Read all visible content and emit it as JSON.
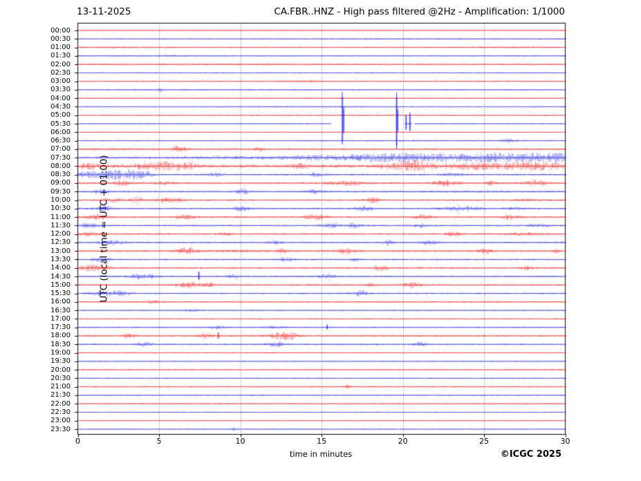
{
  "header": {
    "date": "13-11-2025",
    "title": "CA.FBR..HNZ - High pass filtered @2Hz - Amplification: 1/1000"
  },
  "axes": {
    "ylabel": "UTC (local time = UTC + 01:00)",
    "xlabel": "time in minutes"
  },
  "footer": {
    "copyright": "©ICGC 2025"
  },
  "colors": {
    "trace_red": "#e81414",
    "trace_blue": "#2020dd",
    "grid": "#666666",
    "frame": "#000000",
    "text": "#000000"
  },
  "chart_data": {
    "type": "line",
    "description": "Helicorder day-plot: 48 half-hour traces, red on the hour, blue on the half hour. Noise level in px half-amplitude; bursts = [minute, sigma_min, extra_amp]; spikes = [minute, up_px, down_px]; segments = drawn baseline ranges in minutes (null = full 0-30).",
    "x_range_minutes": [
      0,
      30
    ],
    "x_ticks_minutes": [
      0,
      5,
      10,
      15,
      20,
      25,
      30
    ],
    "rows": [
      {
        "time": "00:00",
        "color": "red",
        "noise": 0.5,
        "bursts": [
          [
            14,
            12,
            0.15
          ]
        ],
        "spikes": [],
        "segments": null
      },
      {
        "time": "00:30",
        "color": "blue",
        "noise": 0.65,
        "bursts": [
          [
            20,
            8,
            0.2
          ]
        ],
        "spikes": [],
        "segments": null
      },
      {
        "time": "01:00",
        "color": "red",
        "noise": 0.75,
        "bursts": [
          [
            3,
            2,
            0.3
          ],
          [
            26,
            3,
            0.3
          ]
        ],
        "spikes": [],
        "segments": null
      },
      {
        "time": "01:30",
        "color": "blue",
        "noise": 0.75,
        "bursts": [
          [
            5,
            3,
            0.2
          ]
        ],
        "spikes": [],
        "segments": null
      },
      {
        "time": "02:00",
        "color": "red",
        "noise": 0.8,
        "bursts": [
          [
            8,
            5,
            0.2
          ]
        ],
        "spikes": [],
        "segments": null
      },
      {
        "time": "02:30",
        "color": "blue",
        "noise": 0.7,
        "bursts": [],
        "spikes": [],
        "segments": null
      },
      {
        "time": "03:00",
        "color": "red",
        "noise": 0.7,
        "bursts": [
          [
            14,
            1,
            0.5
          ]
        ],
        "spikes": [],
        "segments": null
      },
      {
        "time": "03:30",
        "color": "blue",
        "noise": 0.75,
        "bursts": [
          [
            5.1,
            0.1,
            2.2
          ]
        ],
        "spikes": [],
        "segments": null
      },
      {
        "time": "04:00",
        "color": "red",
        "noise": 0.7,
        "bursts": [],
        "spikes": [],
        "segments": null
      },
      {
        "time": "04:30",
        "color": "blue",
        "noise": 0.7,
        "bursts": [
          [
            12,
            4,
            0.2
          ]
        ],
        "spikes": [],
        "segments": null
      },
      {
        "time": "05:00",
        "color": "red",
        "noise": 0.7,
        "bursts": [],
        "spikes": [],
        "segments": null
      },
      {
        "time": "05:30",
        "color": "blue",
        "noise": 0.6,
        "bursts": [],
        "spikes": [
          [
            16.28,
            46,
            30
          ],
          [
            16.36,
            24,
            14
          ],
          [
            19.62,
            45,
            37
          ],
          [
            19.68,
            22,
            12
          ],
          [
            20.2,
            13,
            9
          ],
          [
            20.44,
            16,
            11
          ]
        ],
        "segments": [
          [
            0,
            15.55
          ],
          [
            20.1,
            20.55
          ],
          [
            20.7,
            30
          ]
        ]
      },
      {
        "time": "06:00",
        "color": "red",
        "noise": 0.45,
        "bursts": [],
        "spikes": [],
        "segments": null
      },
      {
        "time": "06:30",
        "color": "blue",
        "noise": 0.7,
        "bursts": [
          [
            26.5,
            0.25,
            3.2
          ],
          [
            20,
            6,
            0.2
          ]
        ],
        "spikes": [],
        "segments": null
      },
      {
        "time": "07:00",
        "color": "red",
        "noise": 1.0,
        "bursts": [
          [
            6.2,
            0.3,
            3.0
          ],
          [
            11.1,
            0.2,
            1.8
          ],
          [
            2,
            1,
            0.5
          ]
        ],
        "spikes": [],
        "segments": null
      },
      {
        "time": "07:30",
        "color": "blue",
        "noise": 1.15,
        "bursts": [
          [
            9,
            2,
            0.5
          ],
          [
            14.5,
            1.2,
            1.8
          ],
          [
            17.8,
            1,
            2.2
          ],
          [
            19.8,
            1.5,
            2.2
          ],
          [
            22,
            1.2,
            2.0
          ],
          [
            24.5,
            1.2,
            2.2
          ],
          [
            26.5,
            1.2,
            2.6
          ],
          [
            28.5,
            1,
            2.8
          ],
          [
            29.6,
            0.5,
            2.5
          ],
          [
            21,
            8,
            0.8
          ]
        ],
        "spikes": [],
        "segments": null
      },
      {
        "time": "08:00",
        "color": "red",
        "noise": 1.25,
        "bursts": [
          [
            0.6,
            0.7,
            2.2
          ],
          [
            4.8,
            1.2,
            2.6
          ],
          [
            6.2,
            0.8,
            2.6
          ],
          [
            13.6,
            0.4,
            1.8
          ],
          [
            19.9,
            1,
            2.6
          ],
          [
            21,
            0.6,
            3.0
          ],
          [
            23.8,
            1,
            2.6
          ],
          [
            26.6,
            1.4,
            2.6
          ],
          [
            28.7,
            1,
            2.8
          ],
          [
            15,
            14,
            0.5
          ]
        ],
        "spikes": [],
        "segments": null
      },
      {
        "time": "08:30",
        "color": "blue",
        "noise": 1.0,
        "bursts": [
          [
            0.8,
            0.8,
            2.8
          ],
          [
            2.3,
            0.9,
            3.8
          ],
          [
            3.7,
            0.6,
            3.4
          ],
          [
            8.4,
            0.25,
            2.6
          ],
          [
            14.7,
            0.3,
            2.2
          ],
          [
            23.2,
            0.4,
            1.8
          ]
        ],
        "spikes": [],
        "segments": null
      },
      {
        "time": "09:00",
        "color": "red",
        "noise": 1.05,
        "bursts": [
          [
            2.7,
            0.35,
            2.8
          ],
          [
            5.4,
            0.4,
            1.8
          ],
          [
            16.5,
            0.7,
            2.2
          ],
          [
            22.6,
            0.5,
            2.6
          ],
          [
            25.4,
            0.25,
            2.2
          ],
          [
            28.2,
            0.5,
            3.0
          ]
        ],
        "spikes": [],
        "segments": null
      },
      {
        "time": "09:30",
        "color": "blue",
        "noise": 0.95,
        "bursts": [
          [
            1.5,
            0.4,
            2.2
          ],
          [
            10.1,
            0.3,
            2.8
          ],
          [
            14.6,
            0.4,
            1.8
          ],
          [
            24,
            2,
            0.4
          ]
        ],
        "spikes": [],
        "segments": null
      },
      {
        "time": "10:00",
        "color": "red",
        "noise": 0.95,
        "bursts": [
          [
            2.1,
            0.5,
            2.2
          ],
          [
            3.6,
            0.3,
            2.6
          ],
          [
            5.6,
            0.6,
            2.6
          ],
          [
            18.1,
            0.3,
            2.6
          ],
          [
            28,
            1,
            0.8
          ]
        ],
        "spikes": [],
        "segments": null
      },
      {
        "time": "10:30",
        "color": "blue",
        "noise": 0.95,
        "bursts": [
          [
            1.6,
            0.4,
            2.6
          ],
          [
            10,
            0.4,
            2.2
          ],
          [
            17.6,
            0.4,
            2.2
          ],
          [
            23.6,
            0.8,
            2.6
          ],
          [
            27,
            0.4,
            1.8
          ]
        ],
        "spikes": [],
        "segments": null
      },
      {
        "time": "11:00",
        "color": "red",
        "noise": 0.95,
        "bursts": [
          [
            1.1,
            0.5,
            2.6
          ],
          [
            6.6,
            0.4,
            2.2
          ],
          [
            14.6,
            0.5,
            2.6
          ],
          [
            21.2,
            0.4,
            2.2
          ],
          [
            26.6,
            0.4,
            2.6
          ]
        ],
        "spikes": [],
        "segments": null
      },
      {
        "time": "11:30",
        "color": "blue",
        "noise": 0.95,
        "bursts": [
          [
            0.7,
            0.4,
            2.6
          ],
          [
            15.4,
            0.4,
            2.2
          ],
          [
            16.9,
            0.4,
            2.2
          ],
          [
            21.1,
            0.3,
            1.8
          ],
          [
            28.4,
            0.5,
            1.5
          ]
        ],
        "spikes": [],
        "segments": null
      },
      {
        "time": "12:00",
        "color": "red",
        "noise": 0.95,
        "bursts": [
          [
            0.7,
            0.5,
            2.2
          ],
          [
            9.1,
            0.3,
            1.8
          ],
          [
            23.1,
            0.3,
            2.6
          ],
          [
            27.5,
            0.8,
            1.2
          ]
        ],
        "spikes": [],
        "segments": null
      },
      {
        "time": "12:30",
        "color": "blue",
        "noise": 0.95,
        "bursts": [
          [
            2.1,
            0.5,
            2.6
          ],
          [
            12.1,
            0.25,
            2.2
          ],
          [
            19.1,
            0.15,
            3.4
          ],
          [
            21.6,
            0.3,
            2.2
          ]
        ],
        "spikes": [],
        "segments": null
      },
      {
        "time": "13:00",
        "color": "red",
        "noise": 1.05,
        "bursts": [
          [
            6.7,
            0.4,
            3.0
          ],
          [
            12.6,
            0.25,
            2.2
          ],
          [
            16.5,
            0.4,
            2.6
          ],
          [
            25.1,
            0.3,
            2.6
          ],
          [
            29.4,
            0.15,
            2.6
          ],
          [
            10,
            1,
            0.8
          ]
        ],
        "spikes": [],
        "segments": null
      },
      {
        "time": "13:30",
        "color": "blue",
        "noise": 0.95,
        "bursts": [
          [
            1.4,
            0.4,
            2.6
          ],
          [
            12.8,
            0.3,
            2.2
          ],
          [
            17.1,
            0.25,
            1.8
          ]
        ],
        "spikes": [],
        "segments": null
      },
      {
        "time": "14:00",
        "color": "red",
        "noise": 0.95,
        "bursts": [
          [
            0.5,
            0.4,
            2.6
          ],
          [
            1.3,
            0.4,
            3.0
          ],
          [
            18.6,
            0.3,
            2.6
          ],
          [
            27.6,
            0.25,
            2.2
          ]
        ],
        "spikes": [],
        "segments": null
      },
      {
        "time": "14:30",
        "color": "blue",
        "noise": 0.9,
        "bursts": [
          [
            4.3,
            0.4,
            2.2
          ],
          [
            3.5,
            0.3,
            2.0
          ],
          [
            9.6,
            0.25,
            1.8
          ],
          [
            15.3,
            0.4,
            2.2
          ]
        ],
        "spikes": [
          [
            7.45,
            7,
            5
          ]
        ],
        "segments": null
      },
      {
        "time": "15:00",
        "color": "red",
        "noise": 0.95,
        "bursts": [
          [
            6.8,
            0.5,
            3.0
          ],
          [
            8.1,
            0.3,
            1.8
          ],
          [
            18,
            0.3,
            1.5
          ],
          [
            20.6,
            0.4,
            2.6
          ]
        ],
        "spikes": [],
        "segments": null
      },
      {
        "time": "15:30",
        "color": "blue",
        "noise": 0.9,
        "bursts": [
          [
            1.6,
            0.6,
            2.2
          ],
          [
            2.6,
            0.4,
            2.2
          ],
          [
            17.4,
            0.4,
            2.6
          ]
        ],
        "spikes": [],
        "segments": null
      },
      {
        "time": "16:00",
        "color": "red",
        "noise": 0.8,
        "bursts": [
          [
            4.6,
            0.25,
            2.2
          ]
        ],
        "spikes": [],
        "segments": null
      },
      {
        "time": "16:30",
        "color": "blue",
        "noise": 0.8,
        "bursts": [
          [
            7,
            0.3,
            1.2
          ]
        ],
        "spikes": [],
        "segments": null
      },
      {
        "time": "17:00",
        "color": "red",
        "noise": 0.7,
        "bursts": [],
        "spikes": [],
        "segments": null
      },
      {
        "time": "17:30",
        "color": "blue",
        "noise": 0.8,
        "bursts": [
          [
            8.6,
            0.4,
            1.6
          ],
          [
            12,
            0.5,
            1.0
          ]
        ],
        "spikes": [
          [
            15.35,
            4,
            3
          ]
        ],
        "segments": null
      },
      {
        "time": "18:00",
        "color": "red",
        "noise": 0.95,
        "bursts": [
          [
            3.1,
            0.25,
            2.2
          ],
          [
            7.8,
            0.3,
            2.6
          ],
          [
            12.4,
            0.5,
            3.0
          ],
          [
            13.1,
            0.3,
            2.6
          ]
        ],
        "spikes": [
          [
            8.65,
            5,
            4
          ]
        ],
        "segments": null
      },
      {
        "time": "18:30",
        "color": "blue",
        "noise": 0.9,
        "bursts": [
          [
            4.1,
            0.4,
            1.8
          ],
          [
            12.1,
            0.4,
            2.2
          ],
          [
            21.1,
            0.3,
            1.8
          ]
        ],
        "spikes": [],
        "segments": null
      },
      {
        "time": "19:00",
        "color": "red",
        "noise": 0.7,
        "bursts": [],
        "spikes": [],
        "segments": null
      },
      {
        "time": "19:30",
        "color": "blue",
        "noise": 0.7,
        "bursts": [],
        "spikes": [],
        "segments": null
      },
      {
        "time": "20:00",
        "color": "red",
        "noise": 0.7,
        "bursts": [],
        "spikes": [],
        "segments": null
      },
      {
        "time": "20:30",
        "color": "blue",
        "noise": 0.7,
        "bursts": [],
        "spikes": [],
        "segments": null
      },
      {
        "time": "21:00",
        "color": "red",
        "noise": 0.8,
        "bursts": [
          [
            16.6,
            0.15,
            1.8
          ]
        ],
        "spikes": [],
        "segments": null
      },
      {
        "time": "21:30",
        "color": "blue",
        "noise": 0.7,
        "bursts": [],
        "spikes": [],
        "segments": null
      },
      {
        "time": "22:00",
        "color": "red",
        "noise": 0.7,
        "bursts": [],
        "spikes": [],
        "segments": null
      },
      {
        "time": "22:30",
        "color": "blue",
        "noise": 0.6,
        "bursts": [],
        "spikes": [],
        "segments": null
      },
      {
        "time": "23:00",
        "color": "red",
        "noise": 0.6,
        "bursts": [],
        "spikes": [],
        "segments": null
      },
      {
        "time": "23:30",
        "color": "blue",
        "noise": 0.6,
        "bursts": [
          [
            9.5,
            0.15,
            1.5
          ]
        ],
        "spikes": [],
        "segments": null
      }
    ]
  }
}
